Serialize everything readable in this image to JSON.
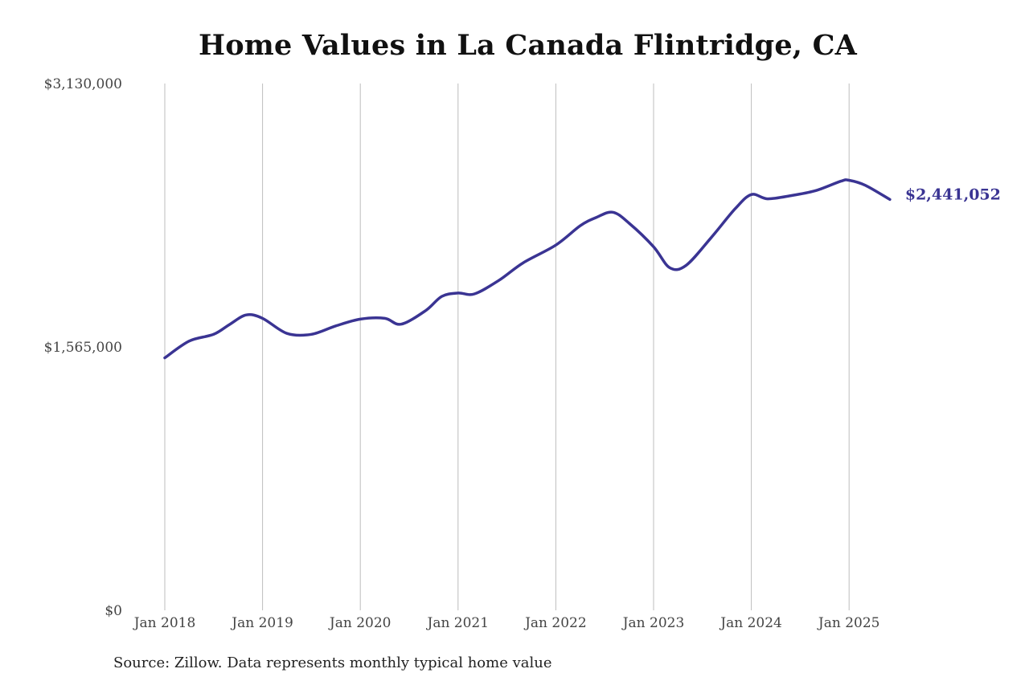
{
  "chart_data": {
    "type": "line",
    "title": "Home Values in La Canada Flintridge, CA",
    "xlabel": "",
    "ylabel": "",
    "ylim": [
      0,
      3130000
    ],
    "y_ticks": [
      {
        "value": 0,
        "label": "$0"
      },
      {
        "value": 1565000,
        "label": "$1,565,000"
      },
      {
        "value": 3130000,
        "label": "$3,130,000"
      }
    ],
    "x_ticks": [
      {
        "value": "2018-01",
        "label": "Jan 2018"
      },
      {
        "value": "2019-01",
        "label": "Jan 2019"
      },
      {
        "value": "2020-01",
        "label": "Jan 2020"
      },
      {
        "value": "2021-01",
        "label": "Jan 2021"
      },
      {
        "value": "2022-01",
        "label": "Jan 2022"
      },
      {
        "value": "2023-01",
        "label": "Jan 2023"
      },
      {
        "value": "2024-01",
        "label": "Jan 2024"
      },
      {
        "value": "2025-01",
        "label": "Jan 2025"
      }
    ],
    "grid": "vertical",
    "line_color": "#3a3493",
    "series": [
      {
        "points": [
          {
            "x": "2018-01",
            "y": 1500000
          },
          {
            "x": "2018-04",
            "y": 1600000
          },
          {
            "x": "2018-07",
            "y": 1640000
          },
          {
            "x": "2018-09",
            "y": 1700000
          },
          {
            "x": "2018-11",
            "y": 1755000
          },
          {
            "x": "2019-01",
            "y": 1735000
          },
          {
            "x": "2019-04",
            "y": 1645000
          },
          {
            "x": "2019-07",
            "y": 1640000
          },
          {
            "x": "2019-10",
            "y": 1690000
          },
          {
            "x": "2020-01",
            "y": 1730000
          },
          {
            "x": "2020-04",
            "y": 1735000
          },
          {
            "x": "2020-06",
            "y": 1700000
          },
          {
            "x": "2020-09",
            "y": 1780000
          },
          {
            "x": "2020-11",
            "y": 1865000
          },
          {
            "x": "2021-01",
            "y": 1885000
          },
          {
            "x": "2021-03",
            "y": 1880000
          },
          {
            "x": "2021-06",
            "y": 1960000
          },
          {
            "x": "2021-09",
            "y": 2065000
          },
          {
            "x": "2022-01",
            "y": 2170000
          },
          {
            "x": "2022-04",
            "y": 2285000
          },
          {
            "x": "2022-06",
            "y": 2335000
          },
          {
            "x": "2022-08",
            "y": 2365000
          },
          {
            "x": "2022-10",
            "y": 2300000
          },
          {
            "x": "2023-01",
            "y": 2160000
          },
          {
            "x": "2023-03",
            "y": 2035000
          },
          {
            "x": "2023-05",
            "y": 2050000
          },
          {
            "x": "2023-08",
            "y": 2210000
          },
          {
            "x": "2023-11",
            "y": 2385000
          },
          {
            "x": "2024-01",
            "y": 2470000
          },
          {
            "x": "2024-03",
            "y": 2445000
          },
          {
            "x": "2024-06",
            "y": 2465000
          },
          {
            "x": "2024-09",
            "y": 2495000
          },
          {
            "x": "2024-12",
            "y": 2550000
          },
          {
            "x": "2025-01",
            "y": 2555000
          },
          {
            "x": "2025-03",
            "y": 2525000
          },
          {
            "x": "2025-06",
            "y": 2441052
          }
        ]
      }
    ],
    "annotations": [
      {
        "label": "$2,441,052",
        "x": "2025-06",
        "y": 2441052
      }
    ]
  },
  "source": "Source: Zillow. Data represents monthly typical home value"
}
